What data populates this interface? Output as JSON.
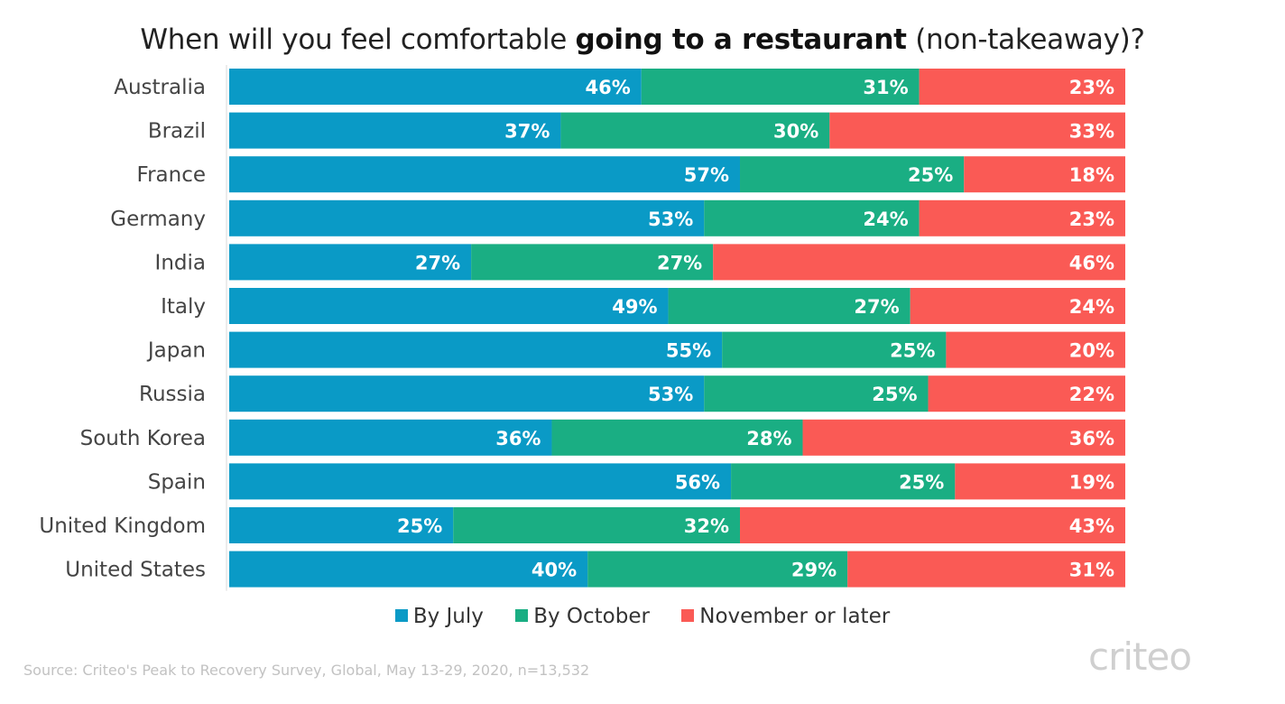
{
  "title": {
    "prefix": "When will you feel comfortable ",
    "bold": "going to a restaurant",
    "suffix": " (non-takeaway)?"
  },
  "colors": {
    "july": "#0a9ac6",
    "october": "#1aae83",
    "later": "#fa5a55",
    "text_on_bar": "#ffffff",
    "axis": "#d9d9d9"
  },
  "legend": {
    "july": "By July",
    "october": "By October",
    "later": "November or later"
  },
  "source": "Source: Criteo's Peak to Recovery Survey, Global, May 13-29, 2020, n=13,532",
  "logo": "criteo",
  "chart_data": {
    "type": "bar",
    "orientation": "horizontal",
    "stacked": true,
    "categories": [
      "Australia",
      "Brazil",
      "France",
      "Germany",
      "India",
      "Italy",
      "Japan",
      "Russia",
      "South Korea",
      "Spain",
      "United Kingdom",
      "United States"
    ],
    "series": [
      {
        "name": "By July",
        "values": [
          46,
          37,
          57,
          53,
          27,
          49,
          55,
          53,
          36,
          56,
          25,
          40
        ]
      },
      {
        "name": "By October",
        "values": [
          31,
          30,
          25,
          24,
          27,
          27,
          25,
          25,
          28,
          25,
          32,
          29
        ]
      },
      {
        "name": "November or later",
        "values": [
          23,
          33,
          18,
          23,
          46,
          24,
          20,
          22,
          36,
          19,
          43,
          31
        ]
      }
    ],
    "value_suffix": "%",
    "xlim": [
      0,
      100
    ],
    "legend_position": "bottom",
    "grid": false
  }
}
